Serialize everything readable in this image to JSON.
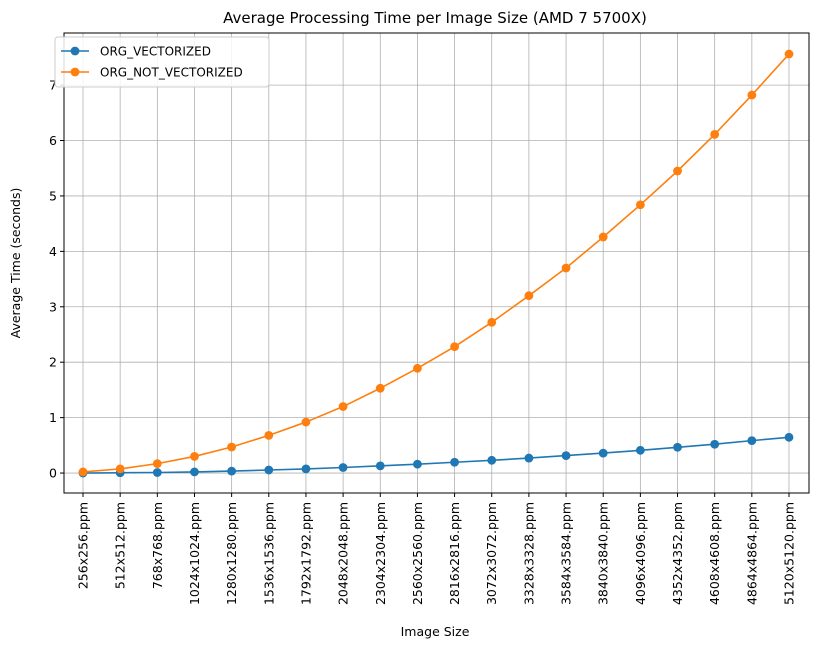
{
  "chart_data": {
    "type": "line",
    "title": "Average Processing Time per Image Size (AMD 7 5700X)",
    "xlabel": "Image Size",
    "ylabel": "Average Time (seconds)",
    "categories": [
      "256x256.ppm",
      "512x512.ppm",
      "768x768.ppm",
      "1024x1024.ppm",
      "1280x1280.ppm",
      "1536x1536.ppm",
      "1792x1792.ppm",
      "2048x2048.ppm",
      "2304x2304.ppm",
      "2560x2560.ppm",
      "2816x2816.ppm",
      "3072x3072.ppm",
      "3328x3328.ppm",
      "3584x3584.ppm",
      "3840x3840.ppm",
      "4096x4096.ppm",
      "4352x4352.ppm",
      "4608x4608.ppm",
      "4864x4864.ppm",
      "5120x5120.ppm"
    ],
    "series": [
      {
        "name": "ORG_VECTORIZED",
        "color": "#1f77b4",
        "values": [
          0.0,
          0.005,
          0.01,
          0.02,
          0.035,
          0.055,
          0.075,
          0.1,
          0.13,
          0.16,
          0.195,
          0.23,
          0.27,
          0.315,
          0.36,
          0.41,
          0.465,
          0.52,
          0.585,
          0.645
        ]
      },
      {
        "name": "ORG_NOT_VECTORIZED",
        "color": "#ff7f0e",
        "values": [
          0.02,
          0.075,
          0.17,
          0.3,
          0.47,
          0.68,
          0.92,
          1.2,
          1.53,
          1.89,
          2.28,
          2.72,
          3.2,
          3.7,
          4.26,
          4.84,
          5.45,
          6.11,
          6.82,
          7.56
        ]
      }
    ],
    "yticks": [
      0,
      1,
      2,
      3,
      4,
      5,
      6,
      7
    ],
    "ylim": [
      -0.36,
      7.94
    ],
    "grid": true,
    "legend": "top-left"
  }
}
